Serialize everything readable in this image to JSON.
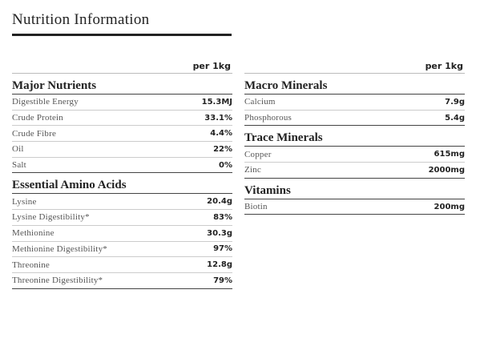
{
  "title": "Nutrition Information",
  "columns": [
    {
      "unit": "per 1kg",
      "sections": [
        {
          "heading": "Major Nutrients",
          "rows": [
            [
              "Digestible Energy",
              "15.3MJ"
            ],
            [
              "Crude Protein",
              "33.1%"
            ],
            [
              "Crude Fibre",
              "4.4%"
            ],
            [
              "Oil",
              "22%"
            ],
            [
              "Salt",
              "0%"
            ]
          ]
        },
        {
          "heading": "Essential Amino Acids",
          "rows": [
            [
              "Lysine",
              "20.4g"
            ],
            [
              "Lysine Digestibility*",
              "83%"
            ],
            [
              "Methionine",
              "30.3g"
            ],
            [
              "Methionine Digestibility*",
              "97%"
            ],
            [
              "Threonine",
              "12.8g"
            ],
            [
              "Threonine Digestibility*",
              "79%"
            ]
          ]
        }
      ]
    },
    {
      "unit": "per 1kg",
      "sections": [
        {
          "heading": "Macro Minerals",
          "rows": [
            [
              "Calcium",
              "7.9g"
            ],
            [
              "Phosphorous",
              "5.4g"
            ]
          ]
        },
        {
          "heading": "Trace Minerals",
          "rows": [
            [
              "Copper",
              "615mg"
            ],
            [
              "Zinc",
              "2000mg"
            ]
          ]
        },
        {
          "heading": "Vitamins",
          "rows": [
            [
              "Biotin",
              "200mg"
            ]
          ]
        }
      ]
    }
  ]
}
